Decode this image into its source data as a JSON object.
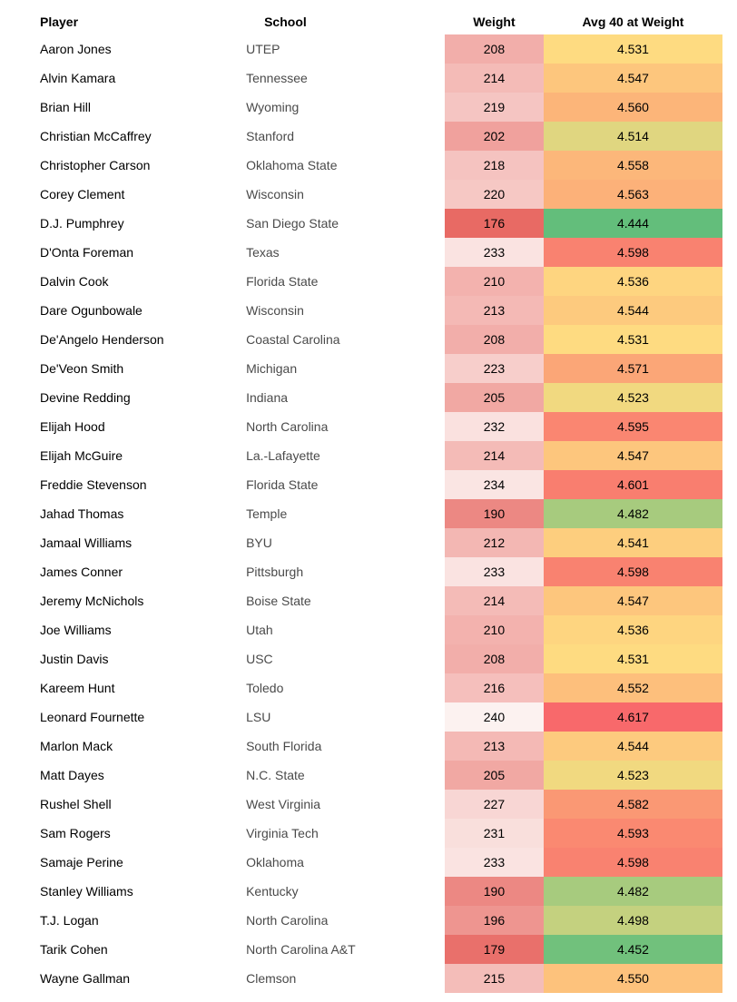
{
  "headers": {
    "player": "Player",
    "school": "School",
    "weight": "Weight",
    "avg40": "Avg 40 at Weight"
  },
  "weight_scale": {
    "min": 176,
    "max": 240,
    "color_low": "#e86a64",
    "color_high": "#fcf2f0"
  },
  "avg40_scale": {
    "min": 4.444,
    "max": 4.617,
    "color_low": "#63be7b",
    "color_mid": "#fedc81",
    "color_high": "#f8696b"
  },
  "rows": [
    {
      "player": "Aaron Jones",
      "school": "UTEP",
      "weight": 208,
      "avg40": "4.531"
    },
    {
      "player": "Alvin Kamara",
      "school": "Tennessee",
      "weight": 214,
      "avg40": "4.547"
    },
    {
      "player": "Brian Hill",
      "school": "Wyoming",
      "weight": 219,
      "avg40": "4.560"
    },
    {
      "player": "Christian McCaffrey",
      "school": "Stanford",
      "weight": 202,
      "avg40": "4.514"
    },
    {
      "player": "Christopher Carson",
      "school": "Oklahoma State",
      "weight": 218,
      "avg40": "4.558"
    },
    {
      "player": "Corey Clement",
      "school": "Wisconsin",
      "weight": 220,
      "avg40": "4.563"
    },
    {
      "player": "D.J. Pumphrey",
      "school": "San Diego State",
      "weight": 176,
      "avg40": "4.444"
    },
    {
      "player": "D'Onta Foreman",
      "school": "Texas",
      "weight": 233,
      "avg40": "4.598"
    },
    {
      "player": "Dalvin Cook",
      "school": "Florida State",
      "weight": 210,
      "avg40": "4.536"
    },
    {
      "player": "Dare Ogunbowale",
      "school": "Wisconsin",
      "weight": 213,
      "avg40": "4.544"
    },
    {
      "player": "De'Angelo Henderson",
      "school": "Coastal Carolina",
      "weight": 208,
      "avg40": "4.531"
    },
    {
      "player": "De'Veon Smith",
      "school": "Michigan",
      "weight": 223,
      "avg40": "4.571"
    },
    {
      "player": "Devine Redding",
      "school": "Indiana",
      "weight": 205,
      "avg40": "4.523"
    },
    {
      "player": "Elijah Hood",
      "school": "North Carolina",
      "weight": 232,
      "avg40": "4.595"
    },
    {
      "player": "Elijah McGuire",
      "school": "La.-Lafayette",
      "weight": 214,
      "avg40": "4.547"
    },
    {
      "player": "Freddie Stevenson",
      "school": "Florida State",
      "weight": 234,
      "avg40": "4.601"
    },
    {
      "player": "Jahad Thomas",
      "school": "Temple",
      "weight": 190,
      "avg40": "4.482"
    },
    {
      "player": "Jamaal Williams",
      "school": "BYU",
      "weight": 212,
      "avg40": "4.541"
    },
    {
      "player": "James Conner",
      "school": "Pittsburgh",
      "weight": 233,
      "avg40": "4.598"
    },
    {
      "player": "Jeremy McNichols",
      "school": "Boise State",
      "weight": 214,
      "avg40": "4.547"
    },
    {
      "player": "Joe Williams",
      "school": "Utah",
      "weight": 210,
      "avg40": "4.536"
    },
    {
      "player": "Justin Davis",
      "school": "USC",
      "weight": 208,
      "avg40": "4.531"
    },
    {
      "player": "Kareem Hunt",
      "school": "Toledo",
      "weight": 216,
      "avg40": "4.552"
    },
    {
      "player": "Leonard Fournette",
      "school": "LSU",
      "weight": 240,
      "avg40": "4.617"
    },
    {
      "player": "Marlon Mack",
      "school": "South Florida",
      "weight": 213,
      "avg40": "4.544"
    },
    {
      "player": "Matt Dayes",
      "school": "N.C. State",
      "weight": 205,
      "avg40": "4.523"
    },
    {
      "player": "Rushel Shell",
      "school": "West Virginia",
      "weight": 227,
      "avg40": "4.582"
    },
    {
      "player": "Sam Rogers",
      "school": "Virginia Tech",
      "weight": 231,
      "avg40": "4.593"
    },
    {
      "player": "Samaje Perine",
      "school": "Oklahoma",
      "weight": 233,
      "avg40": "4.598"
    },
    {
      "player": "Stanley Williams",
      "school": "Kentucky",
      "weight": 190,
      "avg40": "4.482"
    },
    {
      "player": "T.J. Logan",
      "school": "North Carolina",
      "weight": 196,
      "avg40": "4.498"
    },
    {
      "player": "Tarik Cohen",
      "school": "North Carolina A&T",
      "weight": 179,
      "avg40": "4.452"
    },
    {
      "player": "Wayne Gallman",
      "school": "Clemson",
      "weight": 215,
      "avg40": "4.550"
    }
  ]
}
